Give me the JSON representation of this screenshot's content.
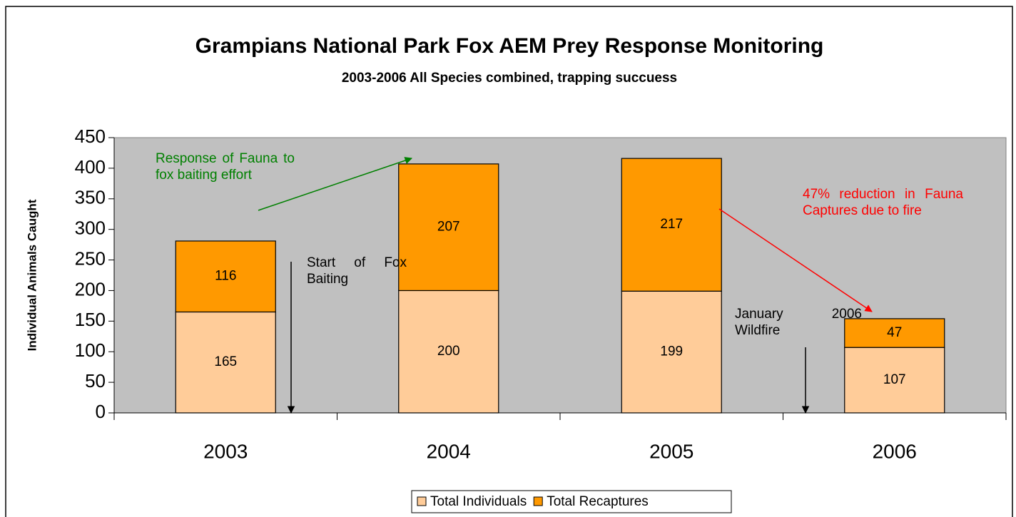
{
  "chart_data": {
    "type": "stacked_bar",
    "title": "Grampians National Park Fox AEM Prey Response Monitoring",
    "subtitle": "2003-2006 All Species combined, trapping succuess",
    "y_label": "Individual Animals Caught",
    "categories": [
      "2003",
      "2004",
      "2005",
      "2006"
    ],
    "series": [
      {
        "name": "Total Individuals",
        "color": "#ffcc99",
        "values": [
          165,
          200,
          199,
          107
        ]
      },
      {
        "name": "Total Recaptures",
        "color": "#ff9900",
        "values": [
          116,
          207,
          217,
          47
        ]
      }
    ],
    "ylim": [
      0,
      450
    ],
    "yticks": [
      0,
      50,
      100,
      150,
      200,
      250,
      300,
      350,
      400,
      450
    ],
    "grid": false,
    "legend": "bottom",
    "annotations": [
      "Response of Fauna to fox baiting effort",
      "Start of Fox Baiting",
      "January 2006 Wildfire",
      "47% reduction in Fauna Captures due to fire"
    ]
  }
}
